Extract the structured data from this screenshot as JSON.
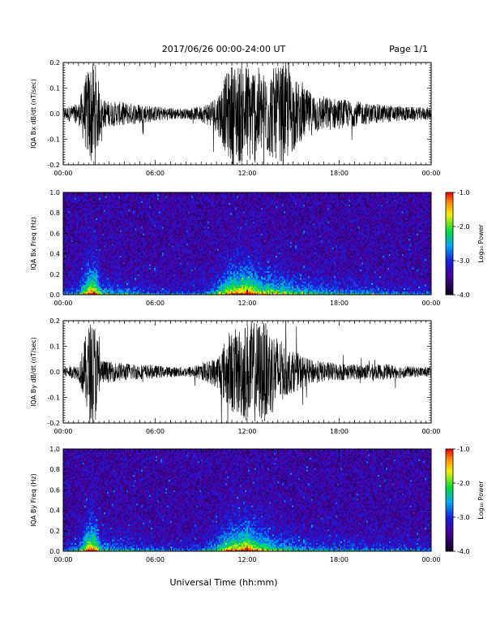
{
  "header": {
    "title": "2017/06/26  00:00-24:00 UT",
    "page": "Page 1/1"
  },
  "xlabel": "Universal Time (hh:mm)",
  "chart_data": [
    {
      "type": "line",
      "ylabel": "IQA Bx dB/dt (nT/sec)",
      "x_ticks": [
        "00:00",
        "06:00",
        "12:00",
        "18:00",
        "00:00"
      ],
      "xlim_hours": [
        0,
        24
      ],
      "ylim": [
        -0.2,
        0.2
      ],
      "y_ticks": [
        "-0.2",
        "-0.1",
        "0.0",
        "0.1",
        "0.2"
      ],
      "series": [
        {
          "x_hours": [
            0,
            1,
            1.7,
            2.1,
            2.5,
            3,
            4,
            5,
            6,
            7,
            8,
            9,
            10,
            10.5,
            11,
            11.5,
            12,
            12.5,
            13,
            13.5,
            14,
            14.5,
            15,
            15.5,
            16,
            17,
            18,
            19,
            20,
            21,
            22,
            23,
            24
          ],
          "envelope_amplitude": [
            0.025,
            0.04,
            0.2,
            0.2,
            0.06,
            0.05,
            0.045,
            0.04,
            0.03,
            0.025,
            0.02,
            0.03,
            0.07,
            0.14,
            0.2,
            0.2,
            0.2,
            0.2,
            0.16,
            0.18,
            0.18,
            0.2,
            0.15,
            0.11,
            0.09,
            0.07,
            0.06,
            0.05,
            0.04,
            0.035,
            0.03,
            0.025,
            0.025
          ]
        }
      ]
    },
    {
      "type": "heatmap",
      "ylabel": "IQA Bx Freq (Hz)",
      "x_ticks": [
        "00:00",
        "06:00",
        "12:00",
        "18:00",
        "00:00"
      ],
      "xlim_hours": [
        0,
        24
      ],
      "ylim": [
        0.0,
        1.0
      ],
      "y_ticks": [
        "0.0",
        "0.2",
        "0.4",
        "0.6",
        "0.8",
        "1.0"
      ],
      "colorbar": {
        "label": "Log₁₀ Power",
        "range": [
          -4.0,
          -1.0
        ],
        "ticks": [
          "-1.0",
          "-2.0",
          "-3.0",
          "-4.0"
        ]
      },
      "activity_hours": [
        0,
        1,
        1.7,
        2.1,
        2.5,
        3,
        4,
        5,
        6,
        7,
        8,
        9,
        10,
        10.5,
        11,
        11.5,
        12,
        12.5,
        13,
        13.5,
        14,
        14.5,
        15,
        15.5,
        16,
        17,
        18,
        19,
        20,
        21,
        22,
        23,
        24
      ],
      "activity_level": [
        0.15,
        0.3,
        1.0,
        0.95,
        0.45,
        0.35,
        0.3,
        0.25,
        0.2,
        0.15,
        0.12,
        0.2,
        0.45,
        0.7,
        0.9,
        0.95,
        1.0,
        0.85,
        0.7,
        0.7,
        0.65,
        0.6,
        0.5,
        0.45,
        0.45,
        0.35,
        0.3,
        0.3,
        0.28,
        0.22,
        0.18,
        0.15,
        0.15
      ]
    },
    {
      "type": "line",
      "ylabel": "IQA By dB/dt (nT/sec)",
      "x_ticks": [
        "00:00",
        "06:00",
        "12:00",
        "18:00",
        "00:00"
      ],
      "xlim_hours": [
        0,
        24
      ],
      "ylim": [
        -0.2,
        0.2
      ],
      "y_ticks": [
        "-0.2",
        "-0.1",
        "0.0",
        "0.1",
        "0.2"
      ],
      "series": [
        {
          "x_hours": [
            0,
            1,
            1.7,
            2.1,
            2.5,
            3,
            4,
            5,
            6,
            7,
            8,
            9,
            10,
            10.5,
            11,
            11.5,
            12,
            12.5,
            13,
            13.5,
            14,
            14.5,
            15,
            15.5,
            16,
            17,
            18,
            19,
            20,
            21,
            22,
            23,
            24
          ],
          "envelope_amplitude": [
            0.02,
            0.03,
            0.2,
            0.2,
            0.05,
            0.04,
            0.035,
            0.03,
            0.025,
            0.02,
            0.02,
            0.03,
            0.06,
            0.12,
            0.16,
            0.18,
            0.2,
            0.2,
            0.2,
            0.18,
            0.14,
            0.1,
            0.08,
            0.07,
            0.05,
            0.04,
            0.035,
            0.03,
            0.03,
            0.03,
            0.025,
            0.02,
            0.02
          ]
        }
      ]
    },
    {
      "type": "heatmap",
      "ylabel": "IQA By Freq (Hz)",
      "x_ticks": [
        "00:00",
        "06:00",
        "12:00",
        "18:00",
        "00:00"
      ],
      "xlim_hours": [
        0,
        24
      ],
      "ylim": [
        0.0,
        1.0
      ],
      "y_ticks": [
        "0.0",
        "0.2",
        "0.4",
        "0.6",
        "0.8",
        "1.0"
      ],
      "colorbar": {
        "label": "Log₁₀ Power",
        "range": [
          -4.0,
          -1.0
        ],
        "ticks": [
          "-1.0",
          "-2.0",
          "-3.0",
          "-4.0"
        ]
      },
      "activity_hours": [
        0,
        1,
        1.7,
        2.1,
        2.5,
        3,
        4,
        5,
        6,
        7,
        8,
        9,
        10,
        10.5,
        11,
        11.5,
        12,
        12.5,
        13,
        13.5,
        14,
        14.5,
        15,
        15.5,
        16,
        17,
        18,
        19,
        20,
        21,
        22,
        23,
        24
      ],
      "activity_level": [
        0.15,
        0.3,
        1.0,
        0.95,
        0.4,
        0.35,
        0.3,
        0.25,
        0.2,
        0.15,
        0.12,
        0.2,
        0.45,
        0.7,
        0.85,
        0.9,
        1.0,
        0.85,
        0.7,
        0.6,
        0.5,
        0.45,
        0.4,
        0.35,
        0.3,
        0.28,
        0.25,
        0.25,
        0.22,
        0.2,
        0.18,
        0.15,
        0.15
      ]
    }
  ]
}
